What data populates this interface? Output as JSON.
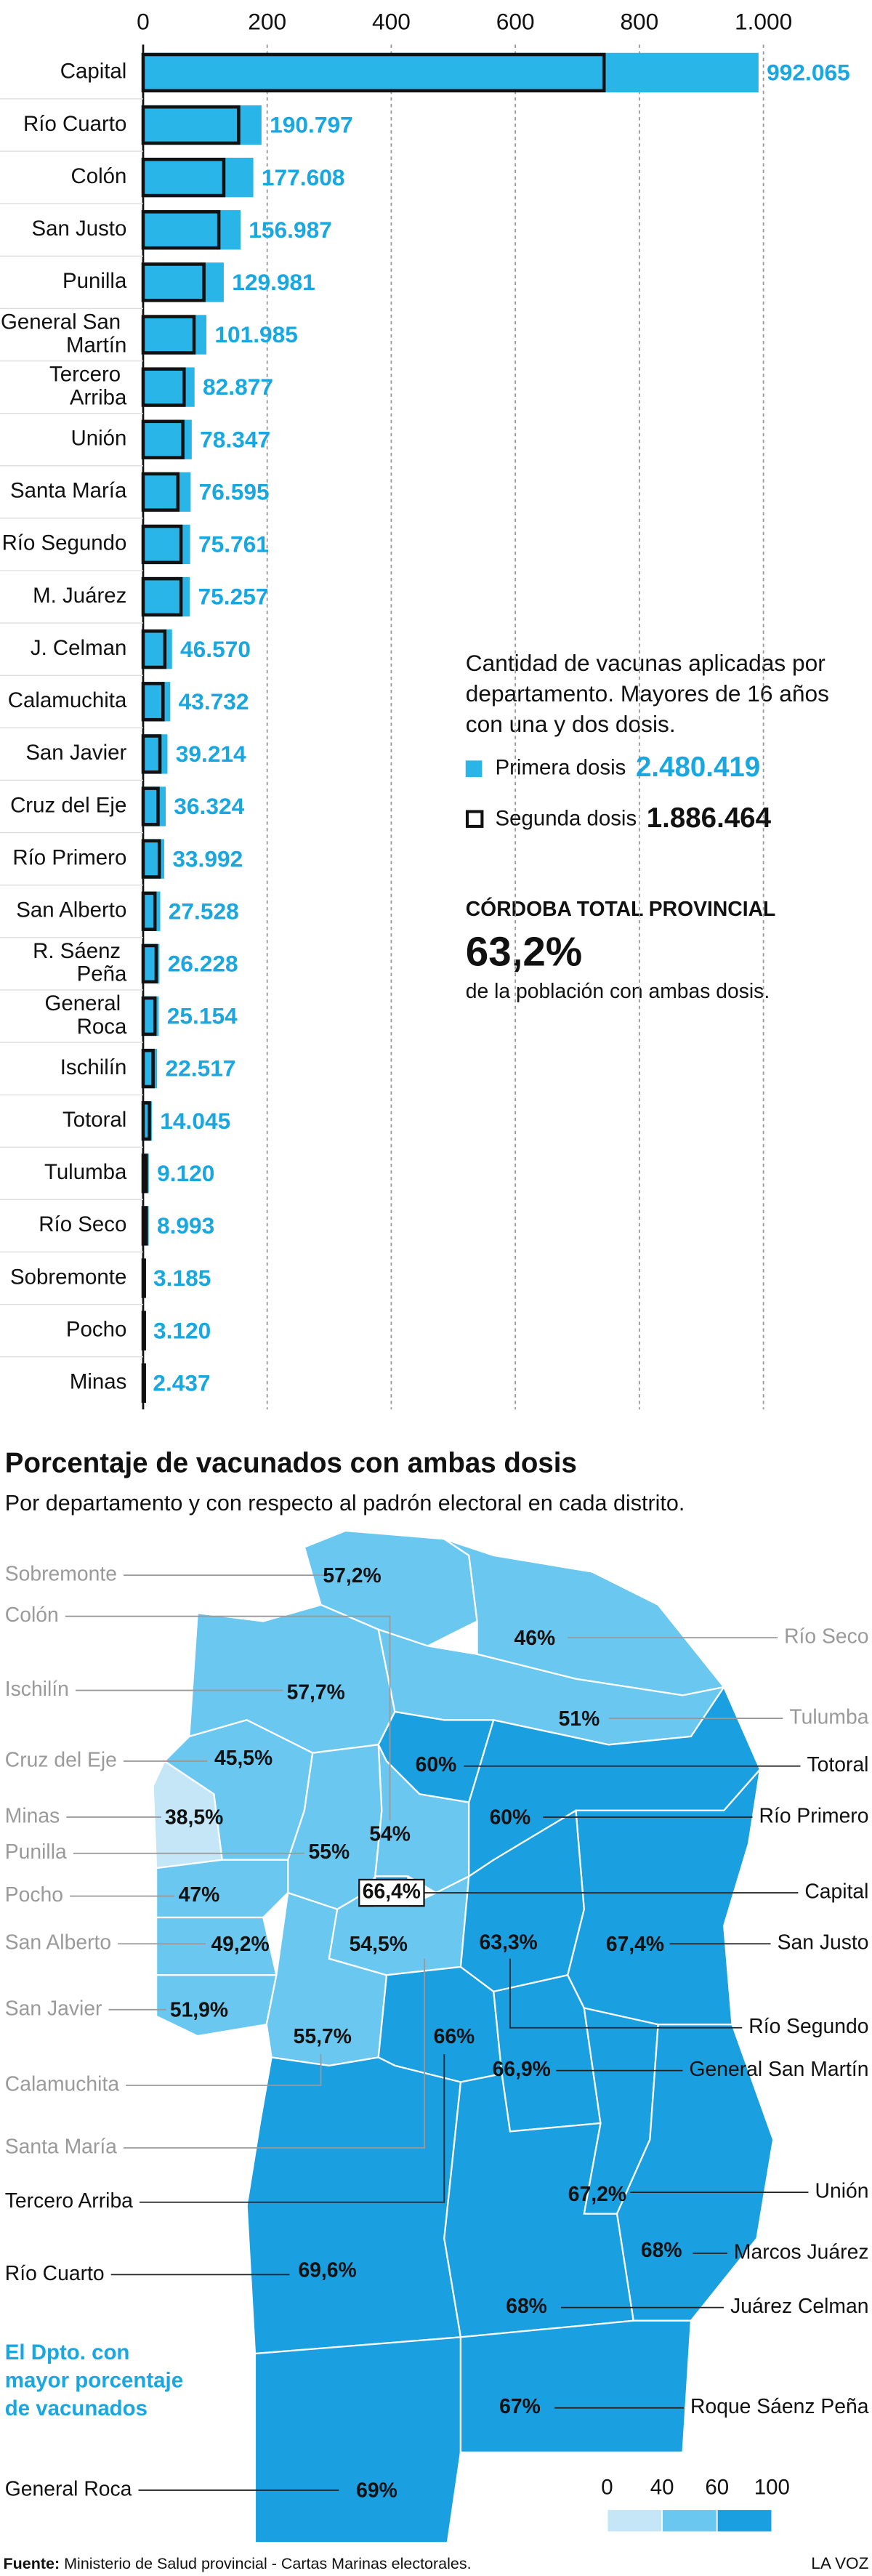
{
  "chart_data": [
    {
      "type": "bar",
      "orientation": "horizontal",
      "categories": [
        "Capital",
        "Río Cuarto",
        "Colón",
        "San Justo",
        "Punilla",
        "General San Martín",
        "Tercero Arriba",
        "Unión",
        "Santa María",
        "Río Segundo",
        "M. Juárez",
        "J. Celman",
        "Calamuchita",
        "San Javier",
        "Cruz del Eje",
        "Río Primero",
        "San Alberto",
        "R. Sáenz Peña",
        "General Roca",
        "Ischilín",
        "Totoral",
        "Tulumba",
        "Río Seco",
        "Sobremonte",
        "Pocho",
        "Minas"
      ],
      "series": [
        {
          "name": "Primera dosis",
          "color": "#29b5e8",
          "total": "2.480.419",
          "values": [
            992.065,
            190.797,
            177.608,
            156.987,
            129.981,
            101.985,
            82.877,
            78.347,
            76.595,
            75.761,
            75.257,
            46.57,
            43.732,
            39.214,
            36.324,
            33.992,
            27.528,
            26.228,
            25.154,
            22.517,
            14.045,
            9.12,
            8.993,
            3.185,
            3.12,
            2.437
          ],
          "value_labels": [
            "992.065",
            "190.797",
            "177.608",
            "156.987",
            "129.981",
            "101.985",
            "82.877",
            "78.347",
            "76.595",
            "75.761",
            "75.257",
            "46.570",
            "43.732",
            "39.214",
            "36.324",
            "33.992",
            "27.528",
            "26.228",
            "25.154",
            "22.517",
            "14.045",
            "9.120",
            "8.993",
            "3.185",
            "3.120",
            "2.437"
          ]
        },
        {
          "name": "Segunda dosis",
          "color": "#111111",
          "total": "1.886.464",
          "values": [
            743,
            154,
            130,
            122,
            98,
            82,
            66,
            64,
            56,
            61,
            61,
            35,
            32,
            27,
            24,
            26,
            19,
            21,
            19,
            16,
            10,
            5,
            5,
            2,
            2,
            2
          ]
        }
      ],
      "xlim": [
        0,
        1175
      ],
      "xticks": [
        0,
        200,
        400,
        600,
        800,
        {
          "value": 1000,
          "label": "1.000"
        }
      ],
      "grid": true,
      "legend_title": "Cantidad de vacunas aplicadas por departamento. Mayores de 16 años con una y dos dosis.",
      "annotation": {
        "title": "CÓRDOBA TOTAL PROVINCIAL",
        "headline": "63,2%",
        "text": "de la población con ambas dosis."
      }
    },
    {
      "type": "choropleth",
      "title": "Porcentaje de vacunados con ambas dosis",
      "subtitle": "Por departamento y con respecto al padrón electoral en cada distrito.",
      "regions": [
        "Sobremonte",
        "Colón",
        "Ischilín",
        "Cruz del Eje",
        "Minas",
        "Punilla",
        "Pocho",
        "San Alberto",
        "San Javier",
        "Calamuchita",
        "Santa María",
        "Tercero Arriba",
        "Río Cuarto",
        "General Roca",
        "Río Seco",
        "Tulumba",
        "Totoral",
        "Río Primero",
        "Capital",
        "San Justo",
        "Río Segundo",
        "General San Martín",
        "Unión",
        "Marcos Juárez",
        "Juárez Celman",
        "Roque Sáenz Peña"
      ],
      "values": [
        57.2,
        54,
        57.7,
        45.5,
        38.5,
        55,
        47,
        49.2,
        51.9,
        55.7,
        54.5,
        66,
        69.6,
        69,
        46,
        51,
        60,
        60,
        66.4,
        67.4,
        63.3,
        66.9,
        67.2,
        68,
        68,
        67
      ],
      "value_labels": [
        "57,2%",
        "54%",
        "57,7%",
        "45,5%",
        "38,5%",
        "55%",
        "47%",
        "49,2%",
        "51,9%",
        "55,7%",
        "54,5%",
        "66%",
        "69,6%",
        "69%",
        "46%",
        "51%",
        "60%",
        "60%",
        "66,4%",
        "67,4%",
        "63,3%",
        "66,9%",
        "67,2%",
        "68%",
        "68%",
        "67%"
      ],
      "scale": {
        "ticks": [
          0,
          40,
          60,
          100
        ],
        "colors": [
          "#c4e6f7",
          "#6ac8f0",
          "#1a9fe0"
        ]
      },
      "annotation": "El Dpto. con mayor porcentaje de vacunados"
    }
  ],
  "footer": {
    "source_label": "Fuente:",
    "source": "Ministerio de Salud provincial - Cartas Marinas electorales.",
    "credit": "LA VOZ"
  }
}
